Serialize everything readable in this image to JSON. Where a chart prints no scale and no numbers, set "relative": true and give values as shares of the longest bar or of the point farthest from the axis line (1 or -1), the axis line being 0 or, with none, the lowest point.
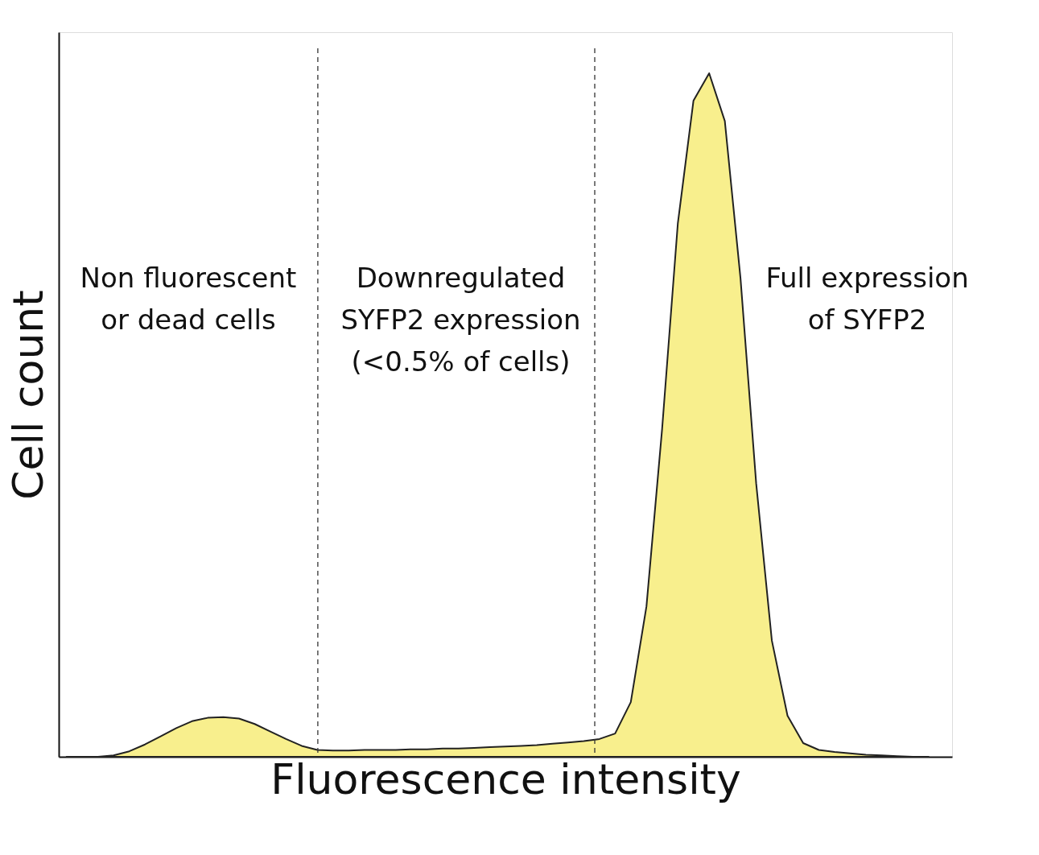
{
  "chart_data": {
    "type": "area",
    "relative": true,
    "xlabel": "Fluorescence intensity",
    "ylabel": "Cell count",
    "grid": false,
    "categories": [
      null,
      null,
      null,
      null,
      null,
      null,
      null,
      null,
      null,
      null,
      null,
      null,
      null,
      null,
      null,
      null,
      null,
      null,
      null,
      null,
      null,
      null,
      null,
      null,
      null,
      null,
      null,
      null,
      null,
      null,
      null,
      null,
      null,
      null,
      null,
      null,
      null,
      null,
      null,
      null,
      null,
      null,
      null,
      null,
      null,
      null,
      null,
      null,
      null,
      null,
      null,
      null,
      null,
      null,
      null,
      null
    ],
    "series": [
      {
        "color": "#f8ef8d",
        "values": [
          0,
          0,
          0,
          0.002,
          0.008,
          0.018,
          0.03,
          0.042,
          0.052,
          0.057,
          0.058,
          0.056,
          0.048,
          0.037,
          0.026,
          0.016,
          0.01,
          0.009,
          0.009,
          0.01,
          0.01,
          0.01,
          0.011,
          0.011,
          0.012,
          0.012,
          0.013,
          0.014,
          0.015,
          0.016,
          0.017,
          0.019,
          0.021,
          0.023,
          0.026,
          0.034,
          0.08,
          0.22,
          0.48,
          0.78,
          0.96,
          1.0,
          0.93,
          0.7,
          0.4,
          0.17,
          0.06,
          0.02,
          0.01,
          0.007,
          0.005,
          0.003,
          0.002,
          0.001,
          0,
          0
        ]
      }
    ],
    "annotations": [
      "Non fluorescent\nor dead cells",
      "Downregulated\nSYFP2 expression\n(<0.5% of cells)",
      "Full expression\nof SYFP2"
    ]
  }
}
